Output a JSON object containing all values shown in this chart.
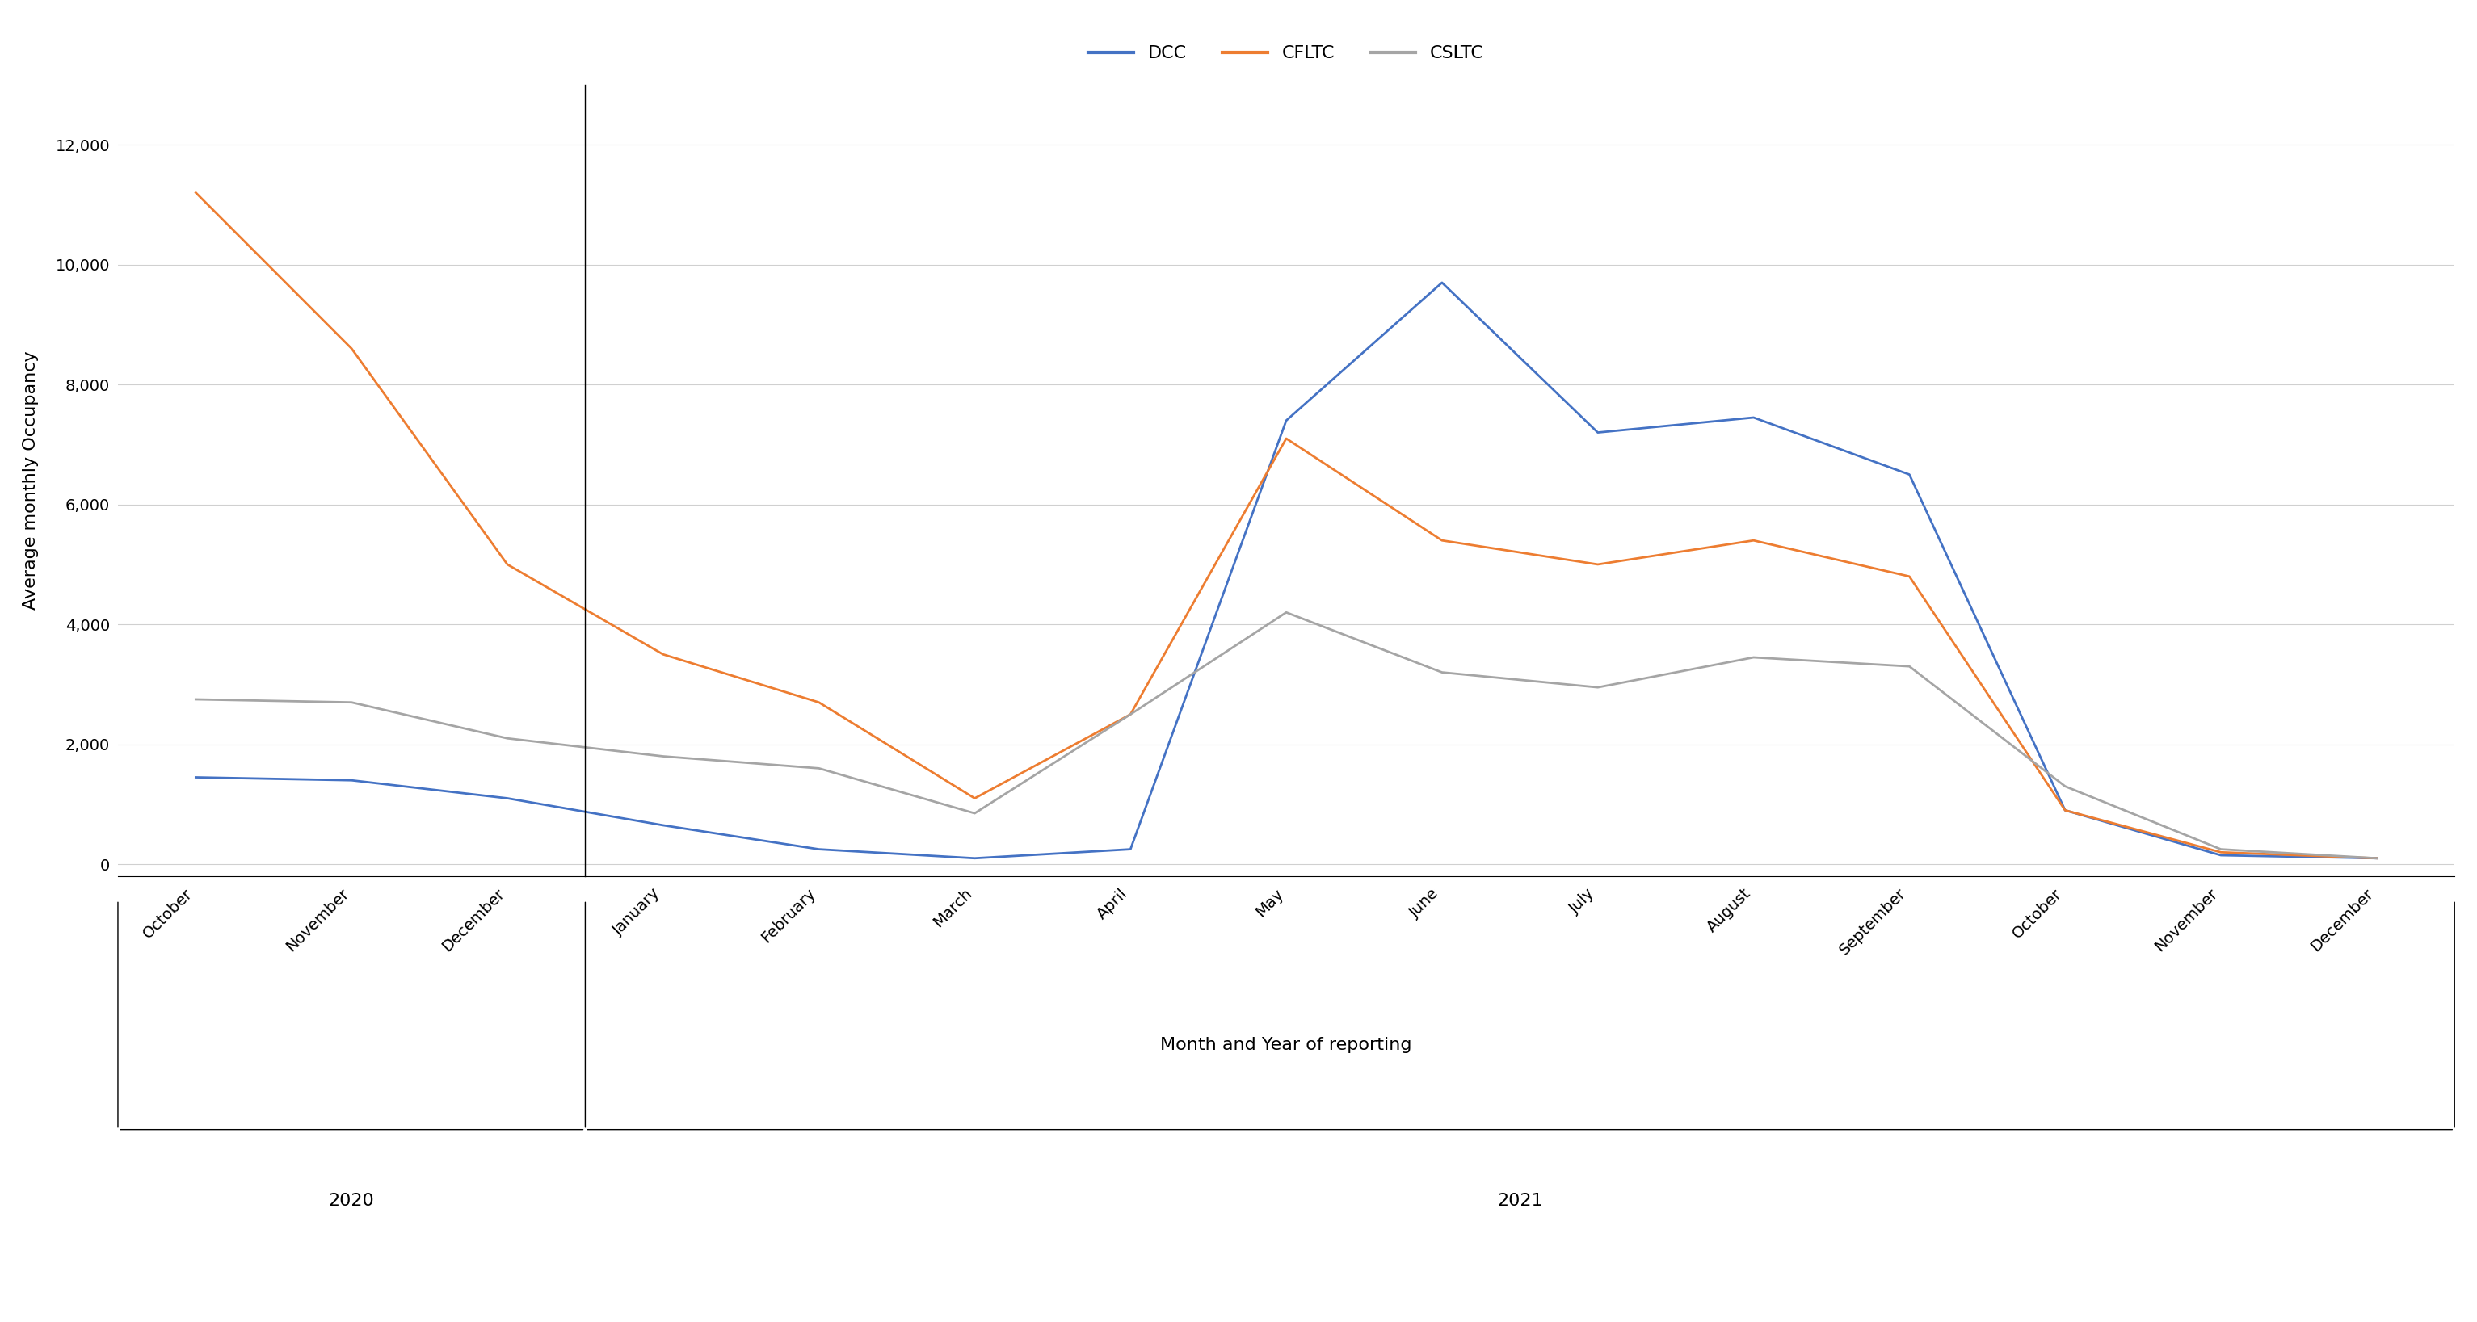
{
  "months": [
    "October",
    "November",
    "December",
    "January",
    "February",
    "March",
    "April",
    "May",
    "June",
    "July",
    "August",
    "September",
    "October",
    "November",
    "December"
  ],
  "DCC": [
    1450,
    1400,
    1100,
    650,
    250,
    100,
    250,
    7400,
    9700,
    7200,
    7450,
    6500,
    900,
    150,
    100
  ],
  "CFLTC": [
    11200,
    8600,
    5000,
    3500,
    2700,
    1100,
    2500,
    7100,
    5400,
    5000,
    5400,
    4800,
    900,
    200,
    100
  ],
  "CSLTC": [
    2750,
    2700,
    2100,
    1800,
    1600,
    850,
    2500,
    4200,
    3200,
    2950,
    3450,
    3300,
    1300,
    250,
    100
  ],
  "DCC_color": "#4472C4",
  "CFLTC_color": "#ED7D31",
  "CSLTC_color": "#A5A5A5",
  "xlabel": "Month and Year of reporting",
  "ylabel": "Average monthly Occupancy",
  "ylim": [
    -200,
    13000
  ],
  "yticks": [
    0,
    2000,
    4000,
    6000,
    8000,
    10000,
    12000
  ],
  "background_color": "#FFFFFF",
  "grid_color": "#D0D0D0",
  "line_width": 2.0,
  "font_size": 14
}
